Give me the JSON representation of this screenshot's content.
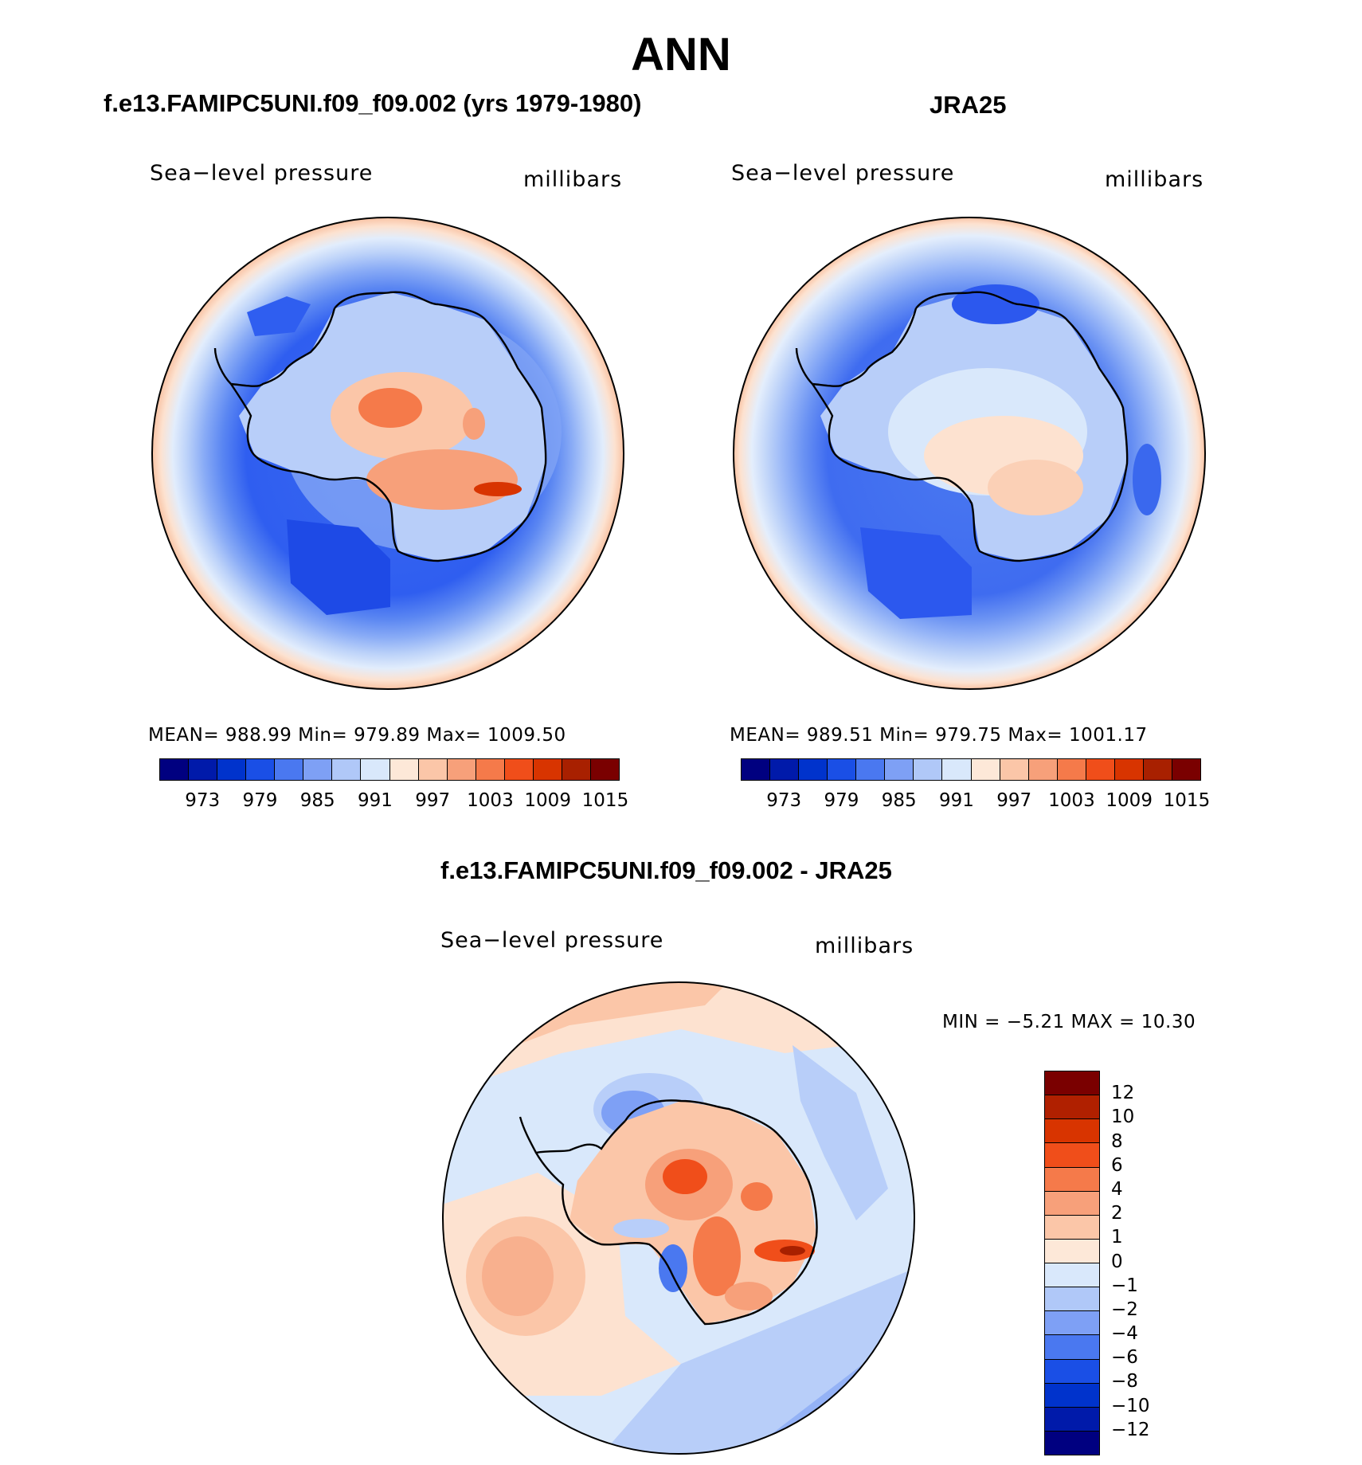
{
  "page": {
    "title": "ANN"
  },
  "panels": {
    "model": {
      "header": "f.e13.FAMIPC5UNI.f09_f09.002 (yrs 1979-1980)",
      "variable": "Sea−level pressure",
      "units": "millibars",
      "stats": "MEAN=  988.99   Min=  979.89   Max=  1009.50",
      "mean": 988.99,
      "min": 979.89,
      "max": 1009.5
    },
    "obs": {
      "header": "JRA25",
      "variable": "Sea−level pressure",
      "units": "millibars",
      "stats": "MEAN=  989.51   Min=  979.75   Max=  1001.17",
      "mean": 989.51,
      "min": 979.75,
      "max": 1001.17
    },
    "diff": {
      "header": "f.e13.FAMIPC5UNI.f09_f09.002 - JRA25",
      "variable": "Sea−level pressure",
      "units": "millibars",
      "stats": "MIN =    −5.21  MAX =    10.30",
      "min": -5.21,
      "max": 10.3
    }
  },
  "colorbars": {
    "abs": {
      "colors": [
        "#000080",
        "#001aaa",
        "#0033cc",
        "#1a4fe6",
        "#4a78f0",
        "#7ea0f5",
        "#b0c8f8",
        "#d9e8fb",
        "#fde8d8",
        "#fbc6a8",
        "#f7a07a",
        "#f57a4a",
        "#f04e1a",
        "#d83400",
        "#a82000",
        "#7a0000"
      ],
      "tick_labels": [
        "973",
        "979",
        "985",
        "991",
        "997",
        "1003",
        "1009",
        "1015"
      ]
    },
    "diff": {
      "colors": [
        "#7a0000",
        "#b02000",
        "#d83400",
        "#f04e1a",
        "#f57a4a",
        "#f7a07a",
        "#fbc6a8",
        "#fde8d8",
        "#d9e8fb",
        "#b0c8f8",
        "#7ea0f5",
        "#4a78f0",
        "#1a4fe6",
        "#0033cc",
        "#001aaa",
        "#000080"
      ],
      "tick_labels": [
        "12",
        "10",
        "8",
        "6",
        "4",
        "2",
        "1",
        "0",
        "−1",
        "−2",
        "−4",
        "−6",
        "−8",
        "−10",
        "−12"
      ]
    }
  }
}
